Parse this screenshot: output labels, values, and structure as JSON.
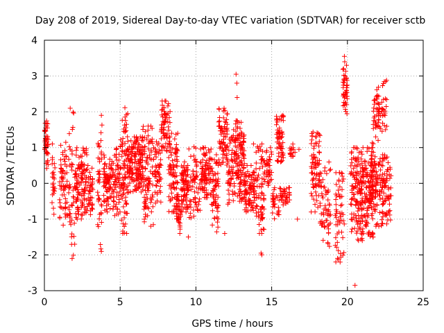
{
  "chart_data": {
    "type": "scatter",
    "title": "Day 208 of 2019, Sidereal Day-to-day VTEC variation (SDTVAR) for receiver sctb",
    "xlabel": "GPS time / hours",
    "ylabel": "SDTVAR / TECUs",
    "xlim": [
      0,
      25
    ],
    "ylim": [
      -3,
      4
    ],
    "xticks": [
      "0",
      "5",
      "10",
      "15",
      "20",
      "25"
    ],
    "yticks": [
      "-3",
      "-2",
      "-1",
      "0",
      "1",
      "2",
      "3",
      "4"
    ],
    "grid": true,
    "marker": "+",
    "color": "#ff0000",
    "series": [
      {
        "name": "SDTVAR",
        "clusters": [
          {
            "x0": 0.0,
            "x1": 0.25,
            "y0": 0.4,
            "y1": 1.8,
            "n": 40
          },
          {
            "x0": 0.5,
            "x1": 0.7,
            "y0": -1.0,
            "y1": 1.1,
            "n": 25
          },
          {
            "x0": 1.0,
            "x1": 1.5,
            "y0": -1.2,
            "y1": 1.2,
            "n": 60
          },
          {
            "x0": 1.6,
            "x1": 2.0,
            "y0": -2.1,
            "y1": 2.1,
            "n": 45
          },
          {
            "x0": 2.0,
            "x1": 2.8,
            "y0": -1.0,
            "y1": 1.0,
            "n": 120
          },
          {
            "x0": 2.8,
            "x1": 3.2,
            "y0": -0.9,
            "y1": 0.5,
            "n": 40
          },
          {
            "x0": 3.5,
            "x1": 3.8,
            "y0": -2.0,
            "y1": 1.9,
            "n": 40
          },
          {
            "x0": 3.9,
            "x1": 4.5,
            "y0": -0.8,
            "y1": 0.8,
            "n": 80
          },
          {
            "x0": 4.5,
            "x1": 5.0,
            "y0": -0.9,
            "y1": 1.0,
            "n": 60
          },
          {
            "x0": 5.0,
            "x1": 5.5,
            "y0": -1.4,
            "y1": 2.15,
            "n": 90
          },
          {
            "x0": 5.5,
            "x1": 6.5,
            "y0": -0.3,
            "y1": 1.3,
            "n": 160
          },
          {
            "x0": 6.5,
            "x1": 7.2,
            "y0": -1.2,
            "y1": 1.6,
            "n": 90
          },
          {
            "x0": 7.2,
            "x1": 7.7,
            "y0": -0.6,
            "y1": 1.2,
            "n": 50
          },
          {
            "x0": 7.7,
            "x1": 8.3,
            "y0": 0.9,
            "y1": 2.3,
            "n": 70
          },
          {
            "x0": 8.2,
            "x1": 8.8,
            "y0": -0.8,
            "y1": 1.4,
            "n": 80
          },
          {
            "x0": 8.7,
            "x1": 9.0,
            "y0": -1.4,
            "y1": -0.3,
            "n": 35
          },
          {
            "x0": 9.0,
            "x1": 9.5,
            "y0": -0.8,
            "y1": 0.6,
            "n": 80
          },
          {
            "x0": 9.5,
            "x1": 10.3,
            "y0": -1.0,
            "y1": 1.1,
            "n": 60
          },
          {
            "x0": 10.3,
            "x1": 11.0,
            "y0": -0.4,
            "y1": 1.0,
            "n": 90
          },
          {
            "x0": 11.0,
            "x1": 11.5,
            "y0": -1.4,
            "y1": 0.8,
            "n": 60
          },
          {
            "x0": 11.5,
            "x1": 12.1,
            "y0": 0.5,
            "y1": 2.1,
            "n": 70
          },
          {
            "x0": 12.1,
            "x1": 12.6,
            "y0": -0.6,
            "y1": 1.5,
            "n": 60
          },
          {
            "x0": 12.6,
            "x1": 13.2,
            "y0": -0.5,
            "y1": 1.8,
            "n": 110
          },
          {
            "x0": 13.2,
            "x1": 13.9,
            "y0": -0.8,
            "y1": 0.5,
            "n": 90
          },
          {
            "x0": 13.9,
            "x1": 14.5,
            "y0": -1.4,
            "y1": 1.1,
            "n": 70
          },
          {
            "x0": 14.5,
            "x1": 15.0,
            "y0": -0.2,
            "y1": 1.0,
            "n": 40
          },
          {
            "x0": 15.0,
            "x1": 15.5,
            "y0": -1.0,
            "y1": -0.1,
            "n": 30
          },
          {
            "x0": 15.3,
            "x1": 15.8,
            "y0": 0.6,
            "y1": 1.9,
            "n": 60
          },
          {
            "x0": 15.5,
            "x1": 16.2,
            "y0": -0.6,
            "y1": -0.1,
            "n": 40
          },
          {
            "x0": 16.2,
            "x1": 16.6,
            "y0": 0.7,
            "y1": 1.1,
            "n": 15
          },
          {
            "x0": 17.6,
            "x1": 18.2,
            "y0": -0.8,
            "y1": 1.5,
            "n": 80
          },
          {
            "x0": 18.2,
            "x1": 18.9,
            "y0": -1.8,
            "y1": 0.6,
            "n": 60
          },
          {
            "x0": 19.2,
            "x1": 19.8,
            "y0": -2.2,
            "y1": 0.3,
            "n": 60
          },
          {
            "x0": 19.7,
            "x1": 20.0,
            "y0": 1.9,
            "y1": 3.3,
            "n": 40
          },
          {
            "x0": 20.2,
            "x1": 21.0,
            "y0": -1.6,
            "y1": 1.0,
            "n": 140
          },
          {
            "x0": 21.0,
            "x1": 21.7,
            "y0": -1.5,
            "y1": 1.0,
            "n": 120
          },
          {
            "x0": 21.7,
            "x1": 22.3,
            "y0": 1.3,
            "y1": 2.7,
            "n": 50
          },
          {
            "x0": 21.5,
            "x1": 22.2,
            "y0": -1.2,
            "y1": 1.2,
            "n": 90
          },
          {
            "x0": 22.2,
            "x1": 22.9,
            "y0": -1.2,
            "y1": 0.8,
            "n": 80
          },
          {
            "x0": 22.3,
            "x1": 22.6,
            "y0": 1.5,
            "y1": 2.9,
            "n": 20
          }
        ],
        "outliers": [
          [
            0.05,
            1.2
          ],
          [
            0.1,
            0.9
          ],
          [
            0.15,
            1.6
          ],
          [
            12.65,
            3.05
          ],
          [
            12.7,
            2.8
          ],
          [
            12.72,
            2.4
          ],
          [
            13.8,
            1.1
          ],
          [
            14.3,
            -1.95
          ],
          [
            14.35,
            -2.0
          ],
          [
            16.8,
            0.95
          ],
          [
            16.7,
            -1.0
          ],
          [
            19.8,
            3.55
          ],
          [
            19.82,
            3.4
          ],
          [
            19.85,
            3.0
          ],
          [
            19.9,
            2.5
          ],
          [
            19.95,
            2.2
          ],
          [
            20.5,
            -2.85
          ],
          [
            11.9,
            -1.4
          ],
          [
            9.5,
            -1.5
          ]
        ]
      }
    ]
  }
}
